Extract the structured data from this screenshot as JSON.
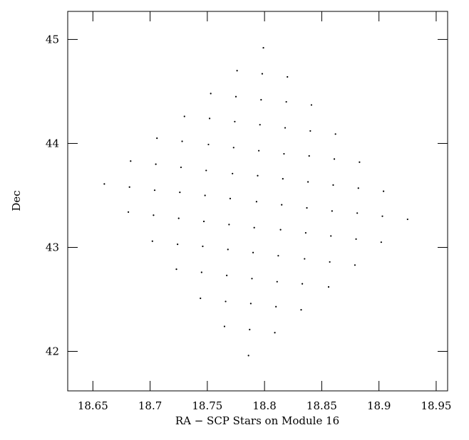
{
  "chart_data": {
    "type": "scatter",
    "xlabel": "RA − SCP Stars on Module 16",
    "ylabel": "Dec",
    "xlim": [
      18.628,
      18.96
    ],
    "ylim": [
      41.62,
      45.27
    ],
    "xticks": [
      18.65,
      18.7,
      18.75,
      18.8,
      18.85,
      18.9,
      18.95
    ],
    "yticks": [
      42,
      43,
      44,
      45
    ],
    "color": "#000000",
    "x": [
      18.786,
      18.765,
      18.744,
      18.723,
      18.702,
      18.681,
      18.66,
      18.809,
      18.788,
      18.767,
      18.746,
      18.725,
      18.704,
      18.683,
      18.832,
      18.811,
      18.79,
      18.769,
      18.748,
      18.727,
      18.706,
      18.856,
      18.835,
      18.814,
      18.793,
      18.772,
      18.751,
      18.73,
      18.879,
      18.858,
      18.837,
      18.816,
      18.795,
      18.774,
      18.753,
      18.902,
      18.881,
      18.86,
      18.839,
      18.818,
      18.797,
      18.776,
      18.925,
      18.904,
      18.883,
      18.862,
      18.841,
      18.82,
      18.799,
      18.787,
      18.766,
      18.745,
      18.724,
      18.703,
      18.682,
      18.81,
      18.789,
      18.768,
      18.747,
      18.726,
      18.705,
      18.833,
      18.812,
      18.791,
      18.77,
      18.749,
      18.728,
      18.857,
      18.836,
      18.815,
      18.794,
      18.773,
      18.752,
      18.88,
      18.859,
      18.838,
      18.817,
      18.796,
      18.775,
      18.903,
      18.882,
      18.861,
      18.84,
      18.819,
      18.798
    ],
    "y": [
      41.96,
      42.24,
      42.51,
      42.79,
      43.06,
      43.34,
      43.61,
      42.18,
      42.46,
      42.73,
      43.01,
      43.28,
      43.55,
      43.83,
      42.4,
      42.67,
      42.95,
      43.22,
      43.5,
      43.77,
      44.05,
      42.62,
      42.89,
      43.17,
      43.44,
      43.71,
      43.99,
      44.26,
      42.83,
      43.11,
      43.38,
      43.66,
      43.93,
      44.21,
      44.48,
      43.05,
      43.33,
      43.6,
      43.88,
      44.15,
      44.42,
      44.7,
      43.27,
      43.54,
      43.82,
      44.09,
      44.37,
      44.64,
      44.92,
      42.21,
      42.48,
      42.76,
      43.03,
      43.31,
      43.58,
      42.43,
      42.7,
      42.98,
      43.25,
      43.53,
      43.8,
      42.65,
      42.92,
      43.19,
      43.47,
      43.74,
      44.02,
      42.86,
      43.14,
      43.41,
      43.69,
      43.96,
      44.24,
      43.08,
      43.35,
      43.63,
      43.9,
      44.18,
      44.45,
      43.3,
      43.57,
      43.85,
      44.12,
      44.4,
      44.67
    ]
  }
}
